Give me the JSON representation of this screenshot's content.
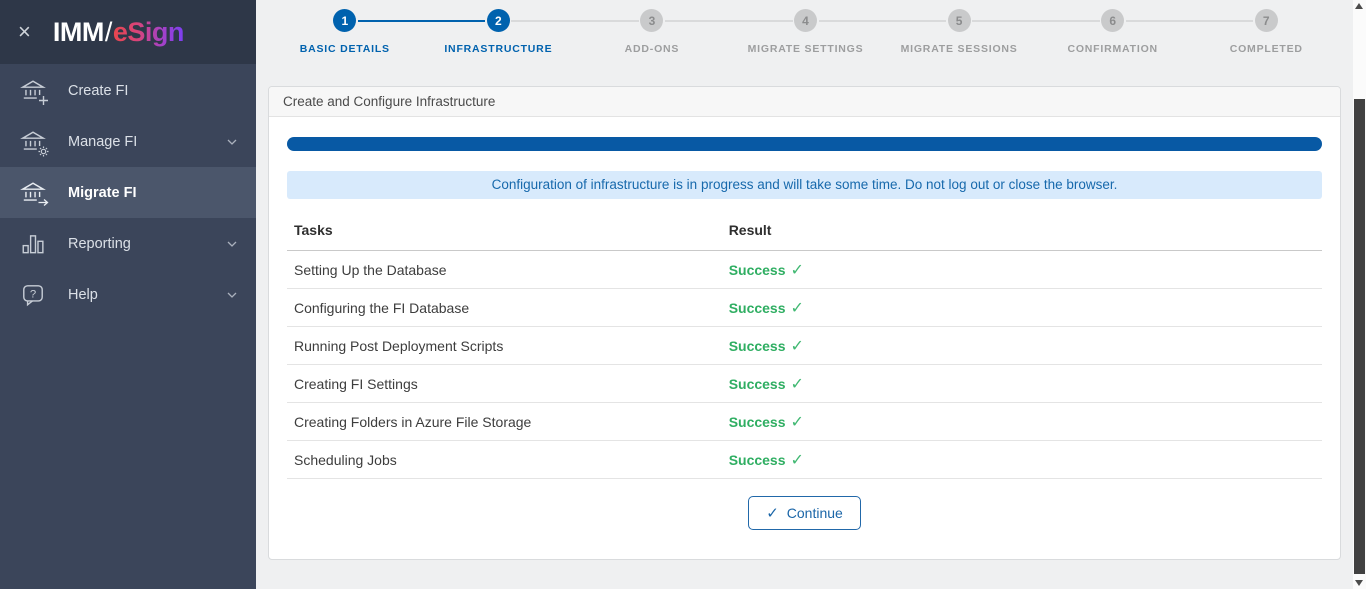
{
  "sidebar": {
    "close_glyph": "×",
    "logo": {
      "imm": "IMM",
      "slash": "/",
      "esign": "eSign"
    },
    "items": [
      {
        "label": "Create FI",
        "icon": "bank-plus-icon",
        "expandable": false,
        "active": false
      },
      {
        "label": "Manage FI",
        "icon": "bank-gear-icon",
        "expandable": true,
        "active": false
      },
      {
        "label": "Migrate FI",
        "icon": "bank-arrow-icon",
        "expandable": false,
        "active": true
      },
      {
        "label": "Reporting",
        "icon": "bar-chart-icon",
        "expandable": true,
        "active": false
      },
      {
        "label": "Help",
        "icon": "help-bubble-icon",
        "expandable": true,
        "active": false
      }
    ]
  },
  "stepper": {
    "steps": [
      {
        "number": "1",
        "label": "BASIC DETAILS",
        "state": "done"
      },
      {
        "number": "2",
        "label": "INFRASTRUCTURE",
        "state": "active"
      },
      {
        "number": "3",
        "label": "ADD-ONS",
        "state": "pending"
      },
      {
        "number": "4",
        "label": "MIGRATE SETTINGS",
        "state": "pending"
      },
      {
        "number": "5",
        "label": "MIGRATE SESSIONS",
        "state": "pending"
      },
      {
        "number": "6",
        "label": "CONFIRMATION",
        "state": "pending"
      },
      {
        "number": "7",
        "label": "COMPLETED",
        "state": "pending"
      }
    ]
  },
  "panel": {
    "title": "Create and Configure Infrastructure",
    "progress_percent": 100,
    "alert": "Configuration of infrastructure is in progress and will take some time. Do not log out or close the browser.",
    "table": {
      "columns": [
        "Tasks",
        "Result"
      ],
      "check_glyph": "✓",
      "rows": [
        {
          "task": "Setting Up the Database",
          "result": "Success"
        },
        {
          "task": "Configuring the FI Database",
          "result": "Success"
        },
        {
          "task": "Running Post Deployment Scripts",
          "result": "Success"
        },
        {
          "task": "Creating FI Settings",
          "result": "Success"
        },
        {
          "task": "Creating Folders in Azure File Storage",
          "result": "Success"
        },
        {
          "task": "Scheduling Jobs",
          "result": "Success"
        }
      ]
    },
    "continue_button": {
      "icon": "✓",
      "label": "Continue"
    }
  },
  "colors": {
    "sidebar_bg": "#3b455a",
    "sidebar_logo_bg": "#2e3748",
    "sidebar_active_bg": "#4b566b",
    "accent_blue": "#0062ae",
    "progress_blue": "#0859a4",
    "alert_bg": "#d8eafc",
    "alert_text": "#1769ac",
    "success_green": "#2fae62",
    "logo_gradient_start": "#e8464d",
    "logo_gradient_end": "#7b3ff2"
  }
}
